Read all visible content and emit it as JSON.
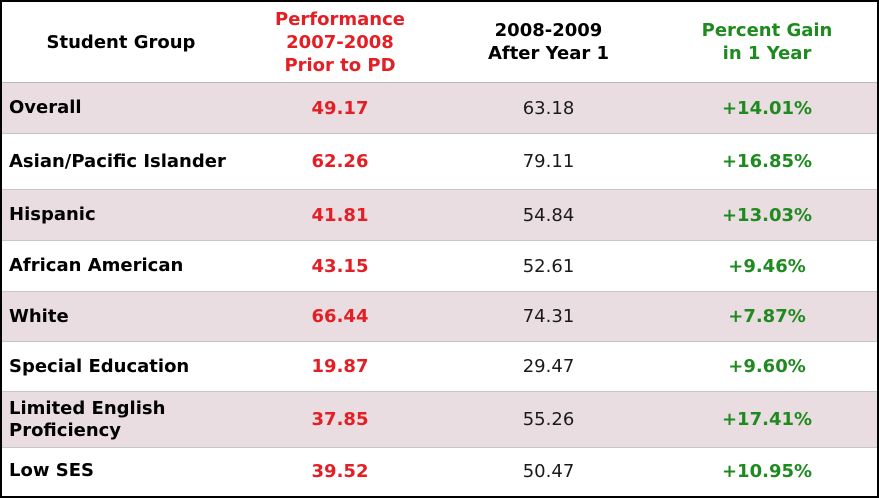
{
  "header": {
    "group": "Student Group",
    "before": [
      "Performance",
      "2007-2008",
      "Prior to PD"
    ],
    "after": [
      "2008-2009",
      "After Year 1"
    ],
    "gain": [
      "Percent Gain",
      "in 1 Year"
    ]
  },
  "rows": [
    {
      "group": "Overall",
      "before": "49.17",
      "after": "63.18",
      "gain": "+14.01%"
    },
    {
      "group": "Asian/Pacific Islander",
      "before": "62.26",
      "after": "79.11",
      "gain": "+16.85%"
    },
    {
      "group": "Hispanic",
      "before": "41.81",
      "after": "54.84",
      "gain": "+13.03%"
    },
    {
      "group": "African American",
      "before": "43.15",
      "after": "52.61",
      "gain": "+9.46%"
    },
    {
      "group": "White",
      "before": "66.44",
      "after": "74.31",
      "gain": "+7.87%"
    },
    {
      "group": "Special Education",
      "before": "19.87",
      "after": "29.47",
      "gain": "+9.60%"
    },
    {
      "group": "Limited English Proficiency",
      "before": "37.85",
      "after": "55.26",
      "gain": "+17.41%"
    },
    {
      "group": "Low SES",
      "before": "39.52",
      "after": "50.47",
      "gain": "+10.95%"
    }
  ],
  "colors": {
    "before": "#e31e24",
    "gain": "#1f8a1f",
    "shaded_row": "#eadde1"
  }
}
